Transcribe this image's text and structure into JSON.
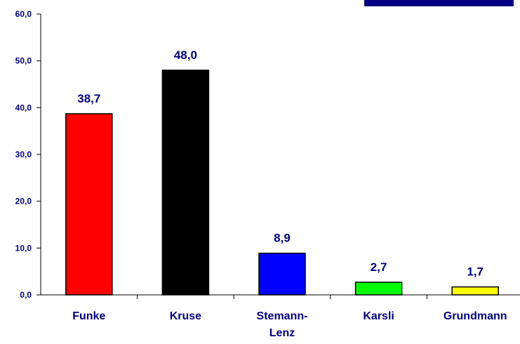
{
  "chart_data": {
    "type": "bar",
    "categories": [
      "Funke",
      "Kruse",
      "Stemann-Lenz",
      "Karsli",
      "Grundmann"
    ],
    "values": [
      38.7,
      48.0,
      8.9,
      2.7,
      1.7
    ],
    "value_labels": [
      "38,7",
      "48,0",
      "8,9",
      "2,7",
      "1,7"
    ],
    "colors": [
      "#ff0000",
      "#000000",
      "#0000ff",
      "#00ff00",
      "#ffff00"
    ],
    "ylim": [
      0,
      60
    ],
    "yticks": [
      {
        "value": 0,
        "label": "0,0"
      },
      {
        "value": 10,
        "label": "10,0"
      },
      {
        "value": 20,
        "label": "20,0"
      },
      {
        "value": 30,
        "label": "30,0"
      },
      {
        "value": 40,
        "label": "40,0"
      },
      {
        "value": 50,
        "label": "50,0"
      },
      {
        "value": 60,
        "label": "60,0"
      }
    ],
    "grid": false
  }
}
